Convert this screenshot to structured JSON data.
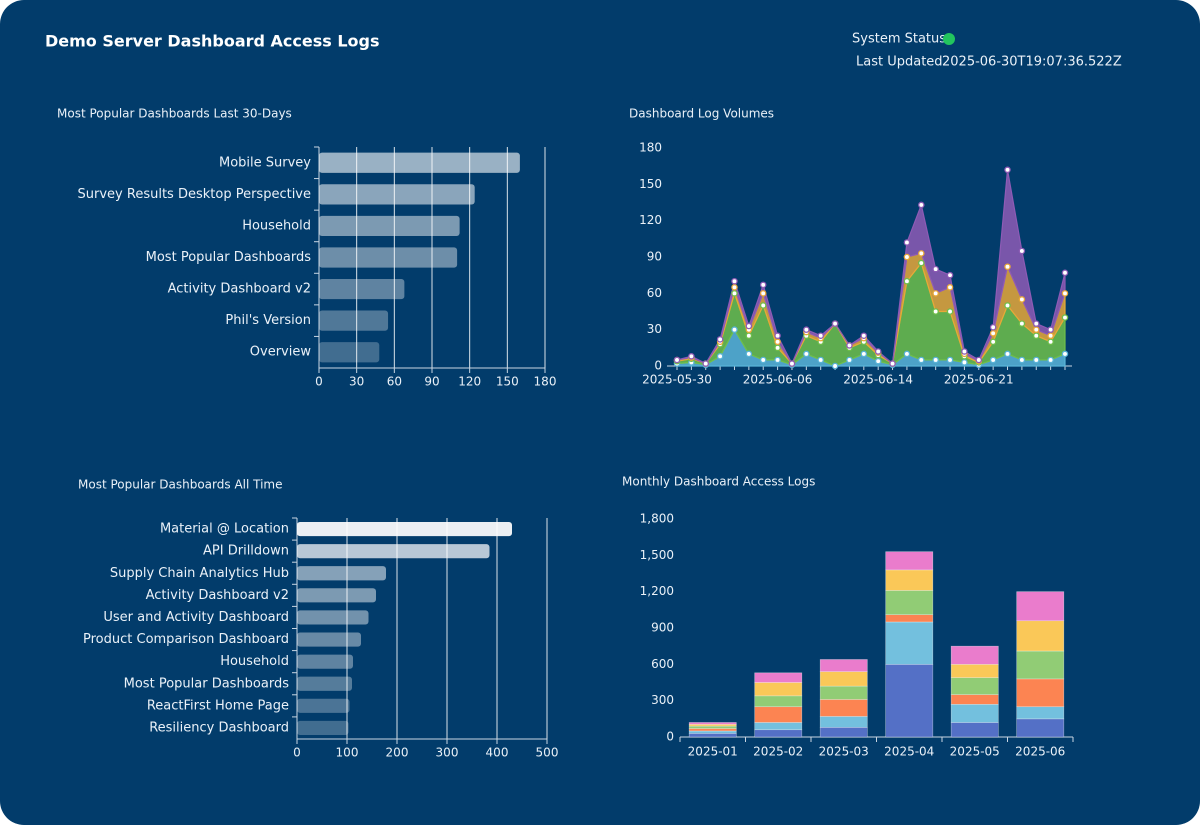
{
  "header": {
    "title": "Demo Server Dashboard Access Logs",
    "status_label": "System Status",
    "updated_label": "Last Updated",
    "updated_value": "2025-06-30T19:07:36.522Z"
  },
  "chart_data": [
    {
      "type": "hbar",
      "title": "Most Popular Dashboards Last 30-Days",
      "categories": [
        "Mobile Survey",
        "Survey Results Desktop Perspective",
        "Household",
        "Most Popular Dashboards",
        "Activity Dashboard v2",
        "Phil's Version",
        "Overview"
      ],
      "values": [
        160,
        124,
        112,
        110,
        68,
        55,
        48
      ],
      "color": "#ffffff",
      "xlim": [
        0,
        180
      ],
      "xticks": [
        0,
        30,
        60,
        90,
        120,
        150,
        180
      ],
      "grid": true
    },
    {
      "type": "area",
      "title": "Dashboard Log Volumes",
      "categories": [
        "2025-05-30",
        null,
        null,
        null,
        null,
        null,
        null,
        "2025-06-06",
        null,
        null,
        null,
        null,
        null,
        null,
        "2025-06-14",
        null,
        null,
        null,
        null,
        null,
        null,
        "2025-06-21",
        null,
        null,
        null,
        null,
        null,
        null
      ],
      "series": [
        {
          "color": "#5ab4d8",
          "values": [
            2,
            3,
            1,
            8,
            30,
            10,
            5,
            5,
            1,
            10,
            5,
            0,
            5,
            10,
            4,
            1,
            10,
            5,
            5,
            5,
            3,
            1,
            5,
            10,
            5,
            5,
            5,
            10
          ]
        },
        {
          "color": "#6fbf4a",
          "values": [
            2,
            3,
            1,
            10,
            30,
            15,
            45,
            10,
            1,
            15,
            15,
            35,
            10,
            10,
            5,
            1,
            60,
            80,
            40,
            40,
            5,
            2,
            15,
            40,
            30,
            20,
            15,
            30
          ]
        },
        {
          "color": "#e8a838",
          "values": [
            1,
            1,
            0,
            2,
            5,
            5,
            10,
            5,
            0,
            3,
            3,
            0,
            2,
            3,
            2,
            0,
            20,
            8,
            15,
            20,
            2,
            1,
            7,
            32,
            20,
            5,
            5,
            20
          ]
        },
        {
          "color": "#8e5bb5",
          "values": [
            0,
            1,
            0,
            2,
            5,
            3,
            7,
            5,
            0,
            2,
            2,
            0,
            0,
            2,
            1,
            0,
            12,
            40,
            20,
            10,
            2,
            1,
            5,
            80,
            40,
            5,
            5,
            17
          ]
        }
      ],
      "ylim": [
        0,
        180
      ],
      "yticks": [
        0,
        30,
        60,
        90,
        120,
        150,
        180
      ],
      "grid": false
    },
    {
      "type": "hbar",
      "title": "Most Popular Dashboards All Time",
      "categories": [
        "Material @ Location",
        "API Drilldown",
        "Supply Chain Analytics Hub",
        "Activity Dashboard v2",
        "User and Activity Dashboard",
        "Product Comparison Dashboard",
        "Household",
        "Most Popular Dashboards",
        "ReactFirst Home Page",
        "Resiliency Dashboard"
      ],
      "values": [
        430,
        385,
        178,
        158,
        143,
        128,
        112,
        110,
        105,
        103
      ],
      "color": "#ffffff",
      "xlim": [
        0,
        500
      ],
      "xticks": [
        0,
        100,
        200,
        300,
        400,
        500
      ],
      "grid": true
    },
    {
      "type": "stacked_bar",
      "title": "Monthly Dashboard Access Logs",
      "categories": [
        "2025-01",
        "2025-02",
        "2025-03",
        "2025-04",
        "2025-05",
        "2025-06"
      ],
      "series": [
        {
          "color": "#5470c6",
          "values": [
            30,
            60,
            80,
            600,
            120,
            150
          ]
        },
        {
          "color": "#73c0de",
          "values": [
            20,
            60,
            90,
            350,
            150,
            100
          ]
        },
        {
          "color": "#fc8452",
          "values": [
            20,
            130,
            140,
            60,
            80,
            230
          ]
        },
        {
          "color": "#91cc75",
          "values": [
            20,
            90,
            110,
            200,
            140,
            230
          ]
        },
        {
          "color": "#fac858",
          "values": [
            15,
            110,
            120,
            170,
            110,
            250
          ]
        },
        {
          "color": "#ea7ccc",
          "values": [
            15,
            80,
            100,
            150,
            150,
            240
          ]
        }
      ],
      "ylim": [
        0,
        1800
      ],
      "yticks": [
        0,
        300,
        600,
        900,
        {
          "value": 1200,
          "label": "1,200"
        },
        {
          "value": 1500,
          "label": "1,500"
        },
        {
          "value": 1800,
          "label": "1,800"
        }
      ],
      "grid": false
    }
  ]
}
